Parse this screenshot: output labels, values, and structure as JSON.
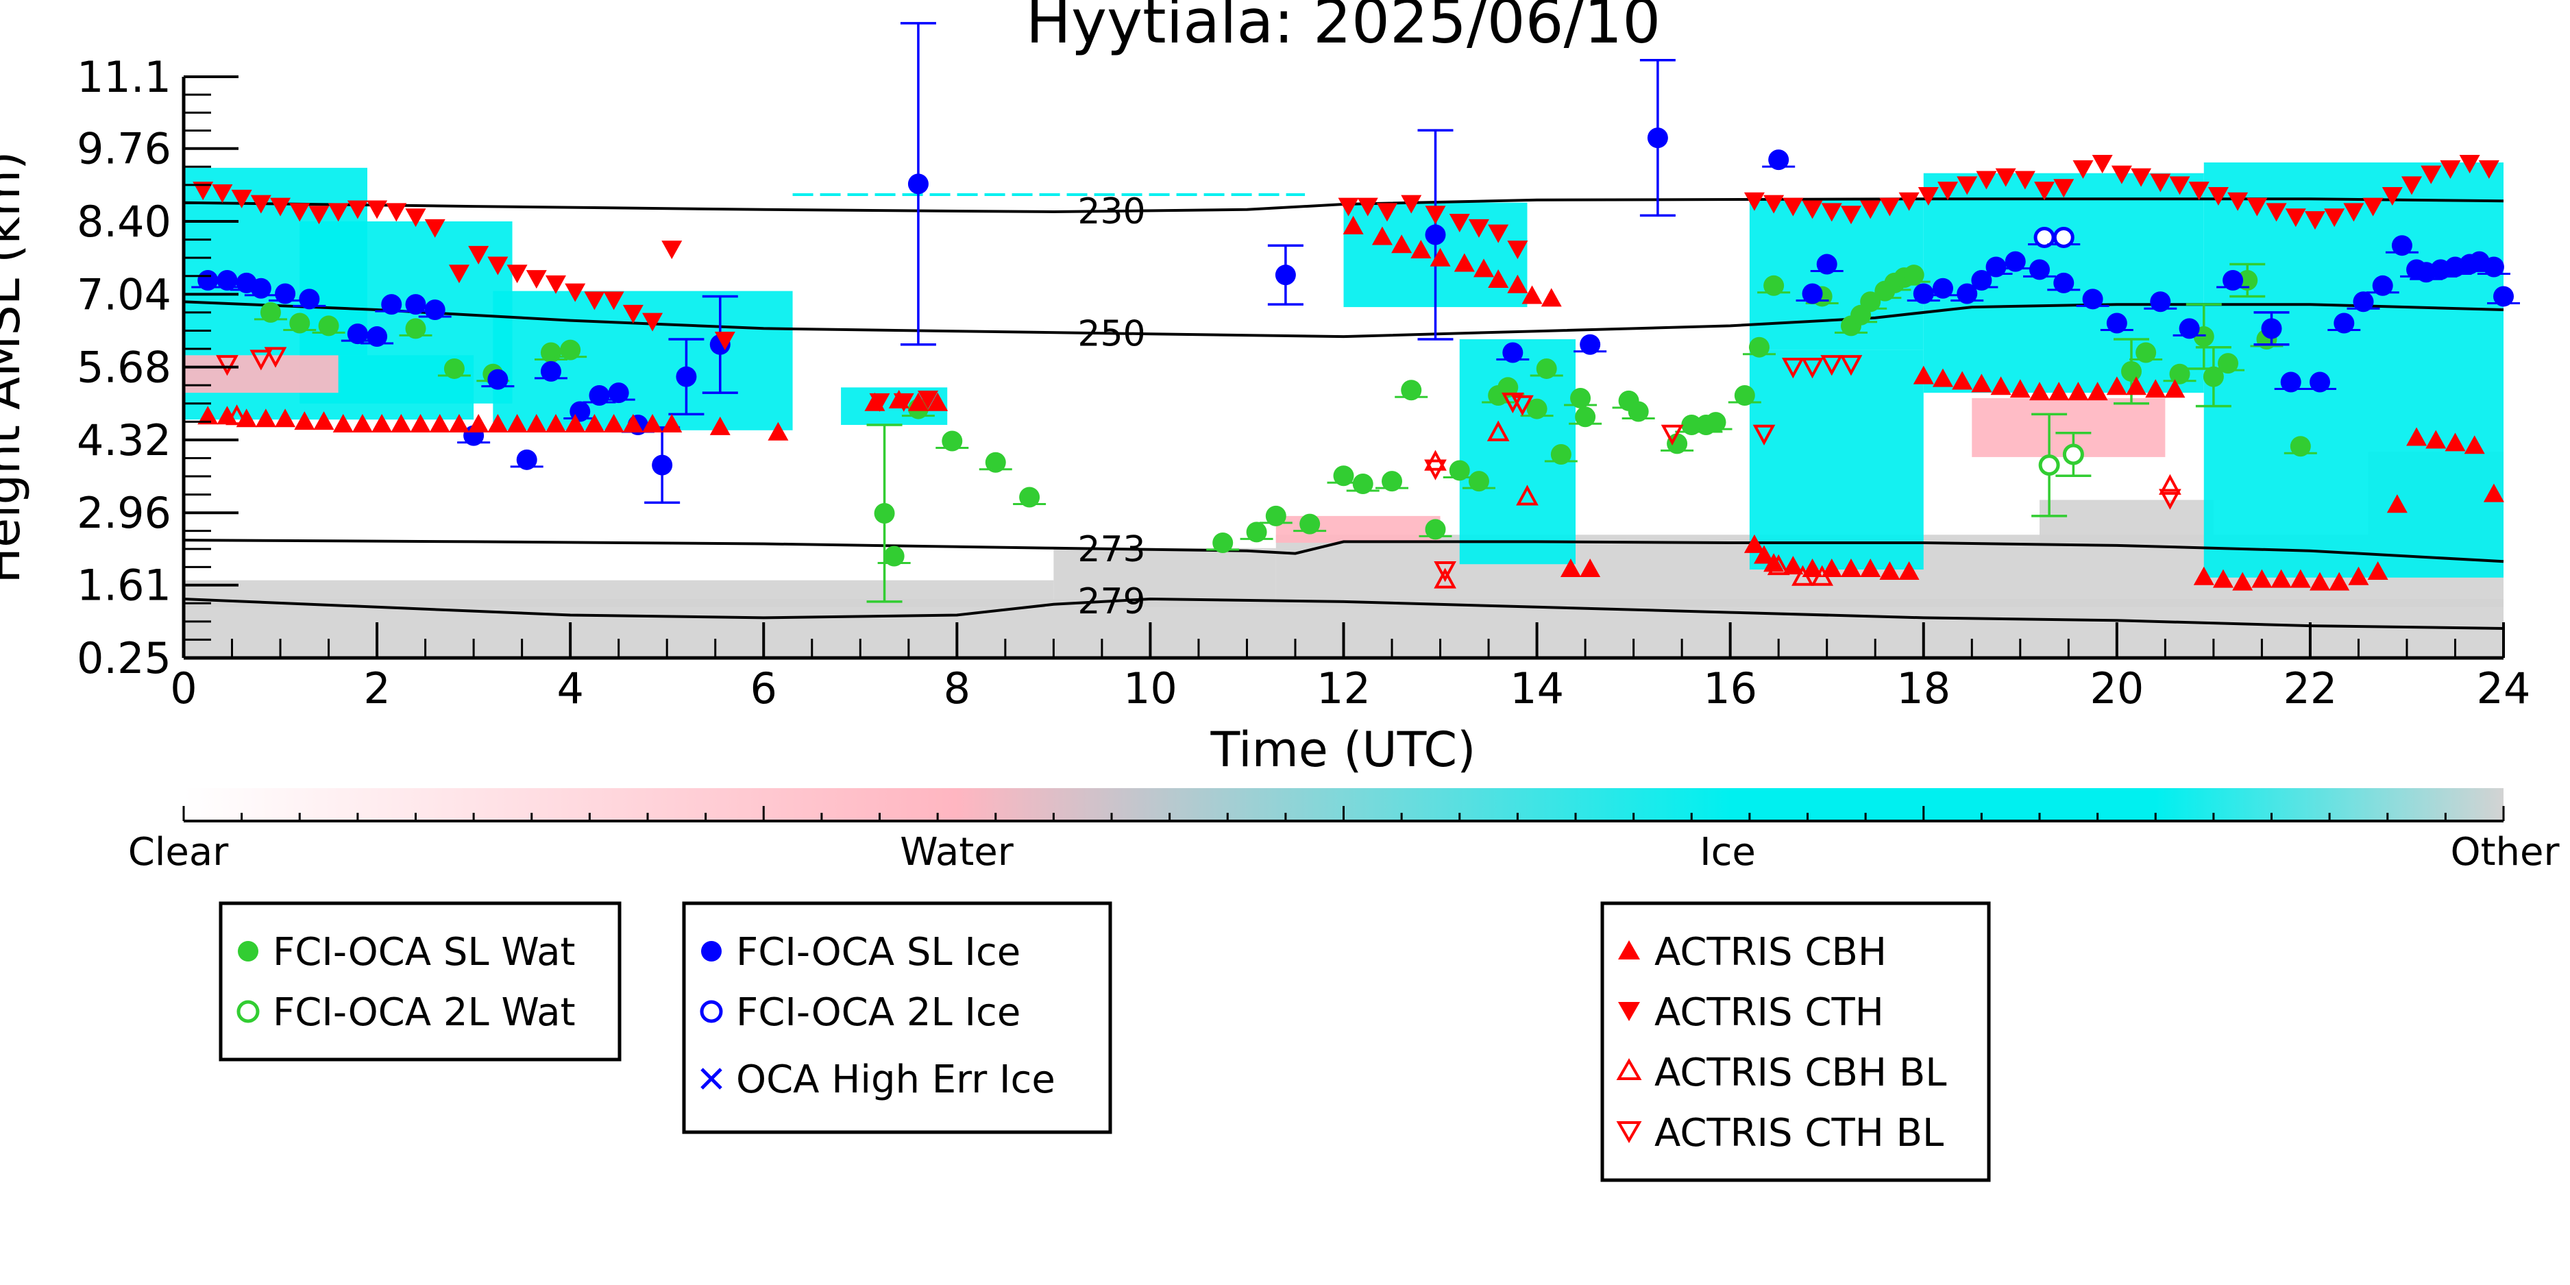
{
  "chart_data": {
    "type": "scatter",
    "title": "Hyytiala: 2025/06/10",
    "xlabel": "Time (UTC)",
    "ylabel": "Height AMSL (km)",
    "xlim": [
      0,
      24
    ],
    "ylim": [
      0.25,
      11.1
    ],
    "x_ticks": [
      0,
      2,
      4,
      6,
      8,
      10,
      12,
      14,
      16,
      18,
      20,
      22,
      24
    ],
    "x_tick_labels": [
      "0",
      "2",
      "4",
      "6",
      "8",
      "10",
      "12",
      "14",
      "16",
      "18",
      "20",
      "22",
      "24"
    ],
    "y_ticks": [
      0.25,
      1.61,
      2.96,
      4.32,
      5.68,
      7.04,
      8.4,
      9.76,
      11.1
    ],
    "y_tick_labels": [
      "0.25",
      "1.61",
      "2.96",
      "4.32",
      "5.68",
      "7.04",
      "8.40",
      "9.76",
      "11.1"
    ],
    "colorbar": {
      "labels": [
        "Clear",
        "Water",
        "Ice",
        "Other"
      ],
      "colors": [
        "#ffffff",
        "#ffb6c1",
        "#00f0f0",
        "#d3d3d3"
      ]
    },
    "isotherms": [
      {
        "label": "230",
        "label_x": 9.6,
        "points": [
          [
            0,
            8.75
          ],
          [
            3,
            8.68
          ],
          [
            6,
            8.62
          ],
          [
            9,
            8.58
          ],
          [
            11,
            8.62
          ],
          [
            12,
            8.72
          ],
          [
            14,
            8.8
          ],
          [
            18,
            8.82
          ],
          [
            22,
            8.82
          ],
          [
            24,
            8.78
          ]
        ]
      },
      {
        "label": "250",
        "label_x": 9.6,
        "points": [
          [
            0,
            6.9
          ],
          [
            2,
            6.75
          ],
          [
            4,
            6.55
          ],
          [
            6,
            6.4
          ],
          [
            8,
            6.35
          ],
          [
            10,
            6.3
          ],
          [
            12,
            6.25
          ],
          [
            14,
            6.35
          ],
          [
            16,
            6.45
          ],
          [
            17.5,
            6.6
          ],
          [
            18.5,
            6.8
          ],
          [
            20,
            6.85
          ],
          [
            22,
            6.85
          ],
          [
            24,
            6.75
          ]
        ]
      },
      {
        "label": "273",
        "label_x": 9.6,
        "points": [
          [
            0,
            2.45
          ],
          [
            3,
            2.42
          ],
          [
            6,
            2.38
          ],
          [
            9,
            2.3
          ],
          [
            11,
            2.25
          ],
          [
            11.5,
            2.2
          ],
          [
            12,
            2.42
          ],
          [
            14,
            2.42
          ],
          [
            16,
            2.4
          ],
          [
            18,
            2.4
          ],
          [
            20,
            2.35
          ],
          [
            22,
            2.25
          ],
          [
            24,
            2.05
          ]
        ]
      },
      {
        "label": "279",
        "label_x": 9.6,
        "points": [
          [
            0,
            1.35
          ],
          [
            2,
            1.2
          ],
          [
            4,
            1.05
          ],
          [
            6,
            1.0
          ],
          [
            8,
            1.05
          ],
          [
            9,
            1.25
          ],
          [
            10,
            1.35
          ],
          [
            12,
            1.3
          ],
          [
            14,
            1.2
          ],
          [
            16,
            1.1
          ],
          [
            18,
            1.0
          ],
          [
            20,
            0.95
          ],
          [
            22,
            0.85
          ],
          [
            24,
            0.8
          ]
        ]
      }
    ],
    "legend": [
      {
        "name": "FCI-OCA SL Wat",
        "marker": "filled-circle",
        "color": "#32cd32"
      },
      {
        "name": "FCI-OCA 2L Wat",
        "marker": "open-circle",
        "color": "#32cd32"
      },
      {
        "name": "FCI-OCA SL Ice",
        "marker": "filled-circle",
        "color": "#0000ff"
      },
      {
        "name": "FCI-OCA 2L Ice",
        "marker": "open-circle",
        "color": "#0000ff"
      },
      {
        "name": "OCA High Err Ice",
        "marker": "x",
        "color": "#0000ff"
      },
      {
        "name": "ACTRIS CBH",
        "marker": "triangle-up",
        "color": "#ff0000"
      },
      {
        "name": "ACTRIS CTH",
        "marker": "triangle-down",
        "color": "#ff0000"
      },
      {
        "name": "ACTRIS CBH BL",
        "marker": "open-triangle-up",
        "color": "#ff0000"
      },
      {
        "name": "ACTRIS CTH BL",
        "marker": "open-triangle-down",
        "color": "#ff0000"
      }
    ],
    "series": [
      {
        "name": "FCI-OCA SL Wat",
        "x": [
          0.9,
          1.2,
          1.5,
          1.8,
          2.4,
          2.8,
          3.2,
          3.8,
          4.0,
          7.25,
          7.35,
          7.6,
          7.95,
          8.4,
          8.75,
          10.75,
          11.1,
          11.3,
          11.65,
          12.0,
          12.2,
          12.5,
          12.7,
          12.95,
          13.2,
          13.4,
          13.6,
          13.7,
          14.0,
          14.1,
          14.25,
          14.45,
          14.5,
          14.95,
          15.05,
          15.45,
          15.6,
          15.75,
          15.85,
          16.15,
          16.3,
          16.45,
          16.95,
          17.25,
          17.35,
          17.45,
          17.6,
          17.7,
          17.8,
          17.9,
          20.15,
          20.3,
          20.65,
          20.9,
          21.0,
          21.15,
          21.35,
          21.55,
          21.9
        ],
        "y": [
          6.7,
          6.5,
          6.45,
          6.3,
          6.4,
          5.65,
          5.55,
          5.95,
          6.0,
          2.95,
          2.15,
          4.9,
          4.3,
          3.9,
          3.25,
          2.4,
          2.6,
          2.9,
          2.75,
          3.65,
          3.5,
          3.55,
          5.25,
          2.65,
          3.75,
          3.55,
          5.15,
          5.3,
          4.9,
          5.65,
          4.05,
          5.1,
          4.75,
          5.05,
          4.85,
          4.25,
          4.6,
          4.6,
          4.65,
          5.15,
          6.05,
          7.2,
          7.0,
          6.45,
          6.65,
          6.9,
          7.1,
          7.25,
          7.35,
          7.4,
          5.6,
          5.95,
          5.55,
          6.25,
          5.5,
          5.75,
          7.3,
          6.2,
          4.2
        ],
        "err": [
          0,
          0,
          0,
          0,
          0,
          0,
          0,
          0,
          0,
          1.65,
          0,
          0,
          0,
          0,
          0,
          0,
          0,
          0,
          0,
          0,
          0,
          0,
          0,
          0,
          0,
          0,
          0,
          0,
          0,
          0,
          0,
          0,
          0,
          0,
          0,
          0,
          0,
          0,
          0,
          0,
          0,
          0,
          0,
          0,
          0,
          0,
          0,
          0,
          0,
          0,
          0.6,
          0,
          0,
          0.6,
          0.55,
          0,
          0.3,
          0,
          0
        ]
      },
      {
        "name": "FCI-OCA 2L Wat",
        "x": [
          19.3,
          19.55
        ],
        "y": [
          3.85,
          4.05
        ],
        "err": [
          0.95,
          0.4
        ]
      },
      {
        "name": "FCI-OCA SL Ice",
        "x": [
          0.25,
          0.45,
          0.65,
          0.8,
          1.05,
          1.3,
          1.8,
          2.0,
          2.15,
          2.4,
          2.6,
          3.0,
          3.25,
          3.55,
          3.8,
          4.1,
          4.3,
          4.5,
          4.7,
          4.95,
          5.2,
          5.55,
          7.6,
          11.4,
          12.95,
          13.75,
          14.55,
          15.25,
          16.5,
          16.85,
          17.0,
          18.0,
          18.2,
          18.45,
          18.6,
          18.75,
          18.95,
          19.2,
          19.45,
          19.75,
          20.0,
          20.45,
          20.75,
          21.2,
          21.6,
          21.8,
          22.1,
          22.35,
          22.55,
          22.75,
          22.95,
          23.1,
          23.2,
          23.35,
          23.5,
          23.65,
          23.75,
          23.9,
          24.0
        ],
        "y": [
          7.3,
          7.3,
          7.25,
          7.15,
          7.05,
          6.95,
          6.3,
          6.25,
          6.85,
          6.85,
          6.75,
          4.4,
          5.45,
          3.95,
          5.6,
          4.85,
          5.15,
          5.2,
          4.6,
          3.85,
          5.5,
          6.1,
          9.1,
          7.4,
          8.15,
          5.95,
          6.1,
          9.96,
          9.55,
          7.05,
          7.6,
          7.05,
          7.15,
          7.05,
          7.3,
          7.55,
          7.65,
          7.5,
          7.25,
          6.95,
          6.5,
          6.9,
          6.4,
          7.3,
          6.4,
          5.4,
          5.4,
          6.5,
          6.9,
          7.2,
          7.95,
          7.5,
          7.45,
          7.5,
          7.55,
          7.6,
          7.65,
          7.55,
          7.0
        ],
        "err": [
          0,
          0,
          0,
          0,
          0,
          0,
          0,
          0,
          0,
          0,
          0,
          0,
          0,
          0,
          0,
          0,
          0,
          0,
          0,
          0.7,
          0.7,
          0.9,
          3.0,
          0.55,
          1.95,
          0,
          0,
          1.45,
          0,
          0,
          0,
          0,
          0,
          0,
          0,
          0,
          0,
          0,
          0,
          0,
          0,
          0,
          0,
          0,
          0.3,
          0,
          0,
          0,
          0,
          0,
          0,
          0,
          0,
          0,
          0,
          0,
          0,
          0,
          0
        ]
      },
      {
        "name": "FCI-OCA 2L Ice",
        "x": [
          19.25,
          19.45
        ],
        "y": [
          8.1,
          8.1
        ],
        "err": [
          0,
          0
        ]
      },
      {
        "name": "OCA High Err Ice",
        "x": [],
        "y": [],
        "err": []
      },
      {
        "name": "ACTRIS CBH",
        "x": [
          0.25,
          0.45,
          0.65,
          0.85,
          1.05,
          1.25,
          1.45,
          1.65,
          1.85,
          2.05,
          2.25,
          2.45,
          2.65,
          2.85,
          3.05,
          3.25,
          3.45,
          3.65,
          3.85,
          4.05,
          4.25,
          4.45,
          4.65,
          4.85,
          5.05,
          5.55,
          6.15,
          7.15,
          7.4,
          7.6,
          7.8,
          12.1,
          12.4,
          12.6,
          12.8,
          13.0,
          13.25,
          13.45,
          13.6,
          13.8,
          13.95,
          14.15,
          14.35,
          14.55,
          16.25,
          16.35,
          16.45,
          16.65,
          16.85,
          17.05,
          17.25,
          17.45,
          17.65,
          17.85,
          18.0,
          18.2,
          18.4,
          18.6,
          18.8,
          19.0,
          19.2,
          19.4,
          19.6,
          19.8,
          20.0,
          20.2,
          20.4,
          20.6,
          20.9,
          21.1,
          21.3,
          21.5,
          21.7,
          21.9,
          22.1,
          22.3,
          22.5,
          22.7,
          22.9,
          23.1,
          23.3,
          23.5,
          23.7,
          23.9
        ],
        "y": [
          4.75,
          4.75,
          4.7,
          4.7,
          4.7,
          4.65,
          4.65,
          4.6,
          4.6,
          4.6,
          4.6,
          4.6,
          4.6,
          4.6,
          4.6,
          4.6,
          4.6,
          4.6,
          4.6,
          4.6,
          4.6,
          4.6,
          4.6,
          4.6,
          4.6,
          4.55,
          4.45,
          5.0,
          5.05,
          5.0,
          5.0,
          8.3,
          8.1,
          7.95,
          7.85,
          7.7,
          7.6,
          7.5,
          7.3,
          7.2,
          7.0,
          6.95,
          1.9,
          1.9,
          2.35,
          2.15,
          2.0,
          1.95,
          1.9,
          1.9,
          1.9,
          1.9,
          1.85,
          1.85,
          5.5,
          5.45,
          5.4,
          5.35,
          5.3,
          5.25,
          5.2,
          5.2,
          5.2,
          5.2,
          5.3,
          5.3,
          5.25,
          5.25,
          1.75,
          1.7,
          1.65,
          1.7,
          1.7,
          1.7,
          1.65,
          1.65,
          1.75,
          1.85,
          3.1,
          4.35,
          4.3,
          4.25,
          4.2,
          3.3
        ],
        "err": []
      },
      {
        "name": "ACTRIS CTH",
        "x": [
          0.2,
          0.4,
          0.6,
          0.8,
          1.0,
          1.2,
          1.4,
          1.6,
          1.8,
          2.0,
          2.2,
          2.4,
          2.6,
          2.85,
          3.05,
          3.25,
          3.45,
          3.65,
          3.85,
          4.05,
          4.25,
          4.45,
          4.65,
          4.85,
          5.05,
          5.6,
          7.2,
          7.45,
          7.7,
          12.05,
          12.25,
          12.45,
          12.7,
          12.95,
          13.2,
          13.4,
          13.6,
          13.8,
          16.25,
          16.45,
          16.65,
          16.85,
          17.05,
          17.25,
          17.45,
          17.65,
          17.85,
          18.05,
          18.25,
          18.45,
          18.65,
          18.85,
          19.05,
          19.25,
          19.45,
          19.65,
          19.85,
          20.05,
          20.25,
          20.45,
          20.65,
          20.85,
          21.05,
          21.25,
          21.45,
          21.65,
          21.85,
          22.05,
          22.25,
          22.45,
          22.65,
          22.85,
          23.05,
          23.25,
          23.45,
          23.65,
          23.85
        ],
        "y": [
          9.0,
          8.95,
          8.85,
          8.75,
          8.7,
          8.6,
          8.55,
          8.6,
          8.65,
          8.65,
          8.6,
          8.5,
          8.3,
          7.45,
          7.8,
          7.6,
          7.45,
          7.35,
          7.25,
          7.1,
          6.95,
          6.95,
          6.7,
          6.55,
          7.9,
          6.2,
          5.05,
          5.05,
          5.1,
          8.7,
          8.7,
          8.6,
          8.75,
          8.55,
          8.4,
          8.3,
          8.2,
          7.9,
          8.8,
          8.75,
          8.7,
          8.65,
          8.6,
          8.55,
          8.65,
          8.7,
          8.8,
          8.9,
          9.0,
          9.1,
          9.2,
          9.25,
          9.2,
          9.0,
          9.05,
          9.4,
          9.5,
          9.3,
          9.25,
          9.15,
          9.1,
          9.0,
          8.9,
          8.8,
          8.7,
          8.6,
          8.5,
          8.45,
          8.5,
          8.6,
          8.7,
          8.9,
          9.1,
          9.3,
          9.4,
          9.5,
          9.4
        ],
        "err": []
      },
      {
        "name": "ACTRIS CBH BL",
        "x": [
          0.55,
          12.95,
          13.05,
          13.6,
          13.9,
          16.5,
          16.75,
          16.95,
          20.55
        ],
        "y": [
          4.75,
          3.9,
          1.7,
          4.45,
          3.25,
          1.95,
          1.75,
          1.75,
          3.45
        ],
        "err": []
      },
      {
        "name": "ACTRIS CTH BL",
        "x": [
          0.45,
          0.8,
          0.95,
          12.95,
          13.05,
          13.75,
          13.85,
          15.4,
          16.35,
          16.65,
          16.85,
          17.05,
          17.25,
          20.55
        ],
        "y": [
          5.75,
          5.85,
          5.9,
          3.8,
          1.9,
          5.05,
          5.0,
          4.45,
          4.45,
          5.7,
          5.7,
          5.75,
          5.75,
          3.25
        ],
        "err": []
      }
    ]
  }
}
